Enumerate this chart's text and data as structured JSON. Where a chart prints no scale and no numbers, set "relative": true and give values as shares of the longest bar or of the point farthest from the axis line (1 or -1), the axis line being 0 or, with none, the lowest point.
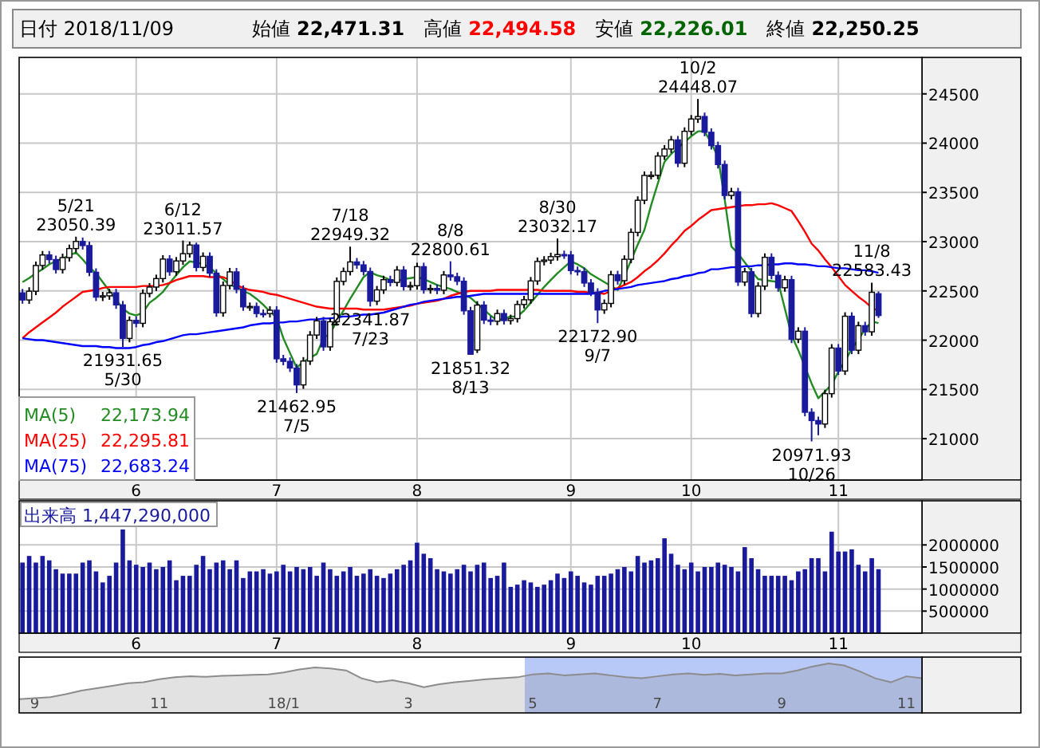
{
  "chart_data": [
    {
      "type": "candlestick",
      "categories": [
        null,
        null,
        null,
        null,
        null,
        null,
        null,
        null,
        null,
        null,
        null,
        null,
        null,
        null,
        null,
        null,
        null,
        "6",
        null,
        null,
        null,
        null,
        null,
        null,
        null,
        null,
        null,
        null,
        null,
        null,
        null,
        null,
        null,
        null,
        null,
        null,
        null,
        null,
        "7",
        null,
        null,
        null,
        null,
        null,
        null,
        null,
        null,
        null,
        null,
        null,
        null,
        null,
        null,
        null,
        null,
        null,
        null,
        null,
        null,
        "8",
        null,
        null,
        null,
        null,
        null,
        null,
        null,
        null,
        null,
        null,
        null,
        null,
        null,
        null,
        null,
        null,
        null,
        null,
        null,
        null,
        null,
        null,
        "9",
        null,
        null,
        null,
        null,
        null,
        null,
        null,
        null,
        null,
        null,
        null,
        null,
        null,
        null,
        null,
        null,
        null,
        "10",
        null,
        null,
        null,
        null,
        null,
        null,
        null,
        null,
        null,
        null,
        null,
        null,
        null,
        null,
        null,
        null,
        null,
        null,
        null,
        null,
        null,
        "11",
        null,
        null,
        null,
        null,
        null,
        null
      ],
      "ohlc": [
        [
          22480,
          22520,
          22370,
          22408
        ],
        [
          22408,
          22537,
          22368,
          22497
        ],
        [
          22497,
          22798,
          22457,
          22758
        ],
        [
          22758,
          22905,
          22718,
          22865
        ],
        [
          22865,
          22905,
          22778,
          22818
        ],
        [
          22818,
          22858,
          22677,
          22717
        ],
        [
          22717,
          22878,
          22677,
          22838
        ],
        [
          22838,
          22970,
          22798,
          22930
        ],
        [
          22930,
          23050.39,
          22890,
          23002
        ],
        [
          23002,
          23042,
          22920,
          22960
        ],
        [
          22960,
          23000,
          22649,
          22689
        ],
        [
          22689,
          22729,
          22397,
          22437
        ],
        [
          22437,
          22490,
          22397,
          22450
        ],
        [
          22450,
          22521,
          22410,
          22481
        ],
        [
          22481,
          22521,
          22318,
          22358
        ],
        [
          22358,
          22398,
          21931.65,
          22018
        ],
        [
          22018,
          22241,
          21978,
          22201
        ],
        [
          22201,
          22241,
          22131,
          22171
        ],
        [
          22171,
          22515,
          22131,
          22475
        ],
        [
          22475,
          22579,
          22435,
          22539
        ],
        [
          22539,
          22665,
          22499,
          22625
        ],
        [
          22625,
          22863,
          22585,
          22823
        ],
        [
          22823,
          22863,
          22654,
          22694
        ],
        [
          22694,
          22844,
          22654,
          22804
        ],
        [
          22804,
          23011.57,
          22764,
          22878
        ],
        [
          22878,
          23000,
          22838,
          22966
        ],
        [
          22966,
          22990,
          22698,
          22738
        ],
        [
          22738,
          22891,
          22698,
          22851
        ],
        [
          22851,
          22891,
          22640,
          22680
        ],
        [
          22680,
          22720,
          22238,
          22278
        ],
        [
          22278,
          22595,
          22238,
          22555
        ],
        [
          22555,
          22733,
          22515,
          22693
        ],
        [
          22693,
          22733,
          22476,
          22516
        ],
        [
          22516,
          22556,
          22298,
          22338
        ],
        [
          22338,
          22382,
          22298,
          22342
        ],
        [
          22342,
          22382,
          22231,
          22271
        ],
        [
          22271,
          22311,
          22230,
          22270
        ],
        [
          22270,
          22344,
          22230,
          22304
        ],
        [
          22304,
          22344,
          21771,
          21811
        ],
        [
          21811,
          21851,
          21745,
          21785
        ],
        [
          21785,
          21825,
          21677,
          21717
        ],
        [
          21717,
          21757,
          21462.95,
          21546
        ],
        [
          21546,
          21828,
          21506,
          21788
        ],
        [
          21788,
          22092,
          21748,
          22052
        ],
        [
          22052,
          22236,
          22012,
          22196
        ],
        [
          22196,
          22236,
          21892,
          21932
        ],
        [
          21932,
          22227,
          21892,
          22187
        ],
        [
          22187,
          22637,
          22147,
          22597
        ],
        [
          22597,
          22737,
          22557,
          22697
        ],
        [
          22697,
          22949.32,
          22657,
          22794
        ],
        [
          22794,
          22834,
          22724,
          22764
        ],
        [
          22764,
          22804,
          22657,
          22697
        ],
        [
          22697,
          22737,
          22341.87,
          22396
        ],
        [
          22396,
          22550,
          22356,
          22510
        ],
        [
          22510,
          22654,
          22470,
          22614
        ],
        [
          22614,
          22654,
          22546,
          22586
        ],
        [
          22586,
          22752,
          22546,
          22712
        ],
        [
          22712,
          22752,
          22504,
          22544
        ],
        [
          22544,
          22593,
          22504,
          22553
        ],
        [
          22553,
          22786,
          22513,
          22746
        ],
        [
          22746,
          22786,
          22472,
          22512
        ],
        [
          22512,
          22565,
          22472,
          22525
        ],
        [
          22525,
          22565,
          22467,
          22507
        ],
        [
          22507,
          22702,
          22467,
          22662
        ],
        [
          22662,
          22800.61,
          22604,
          22644
        ],
        [
          22644,
          22684,
          22558,
          22598
        ],
        [
          22598,
          22638,
          22258,
          22298
        ],
        [
          22298,
          22338,
          21851.32,
          21857
        ],
        [
          21900,
          22396,
          21870,
          22356
        ],
        [
          22356,
          22396,
          22164,
          22204
        ],
        [
          22204,
          22244,
          22152,
          22192
        ],
        [
          22192,
          22310,
          22152,
          22270
        ],
        [
          22270,
          22310,
          22159,
          22199
        ],
        [
          22199,
          22259,
          22159,
          22219
        ],
        [
          22219,
          22402,
          22179,
          22362
        ],
        [
          22362,
          22450,
          22322,
          22410
        ],
        [
          22410,
          22641,
          22370,
          22601
        ],
        [
          22601,
          22839,
          22561,
          22799
        ],
        [
          22799,
          22853,
          22759,
          22813
        ],
        [
          22813,
          22888,
          22773,
          22848
        ],
        [
          22848,
          23032.17,
          22808,
          22869
        ],
        [
          22869,
          22909,
          22825,
          22865
        ],
        [
          22865,
          22905,
          22667,
          22707
        ],
        [
          22707,
          22747,
          22656,
          22696
        ],
        [
          22696,
          22736,
          22540,
          22580
        ],
        [
          22580,
          22620,
          22447,
          22487
        ],
        [
          22487,
          22527,
          22172.9,
          22307
        ],
        [
          22307,
          22413,
          22267,
          22373
        ],
        [
          22373,
          22704,
          22333,
          22664
        ],
        [
          22664,
          22704,
          22564,
          22604
        ],
        [
          22604,
          22861,
          22564,
          22821
        ],
        [
          22821,
          23134,
          22781,
          23094
        ],
        [
          23094,
          23460,
          23054,
          23420
        ],
        [
          23420,
          23712,
          23380,
          23672
        ],
        [
          23672,
          23714,
          23632,
          23674
        ],
        [
          23674,
          23909,
          23634,
          23869
        ],
        [
          23869,
          23980,
          23829,
          23940
        ],
        [
          23940,
          24073,
          23900,
          24033
        ],
        [
          24033,
          24073,
          23756,
          23796
        ],
        [
          23796,
          24160,
          23756,
          24120
        ],
        [
          24120,
          24285,
          24080,
          24245
        ],
        [
          24245,
          24448.07,
          24205,
          24270
        ],
        [
          24270,
          24310,
          24070,
          24110
        ],
        [
          24110,
          24150,
          23935,
          23975
        ],
        [
          23975,
          24015,
          23743,
          23783
        ],
        [
          23783,
          23823,
          23429,
          23469
        ],
        [
          23469,
          23546,
          23429,
          23506
        ],
        [
          23506,
          23546,
          22550,
          22590
        ],
        [
          22590,
          22734,
          22550,
          22694
        ],
        [
          22694,
          22734,
          22231,
          22271
        ],
        [
          22271,
          22589,
          22231,
          22549
        ],
        [
          22549,
          22881,
          22509,
          22841
        ],
        [
          22841,
          22881,
          22618,
          22658
        ],
        [
          22658,
          22698,
          22492,
          22532
        ],
        [
          22532,
          22654,
          22492,
          22614
        ],
        [
          22614,
          22654,
          21970,
          22010
        ],
        [
          22010,
          22131,
          21970,
          22091
        ],
        [
          22091,
          22131,
          21228,
          21268
        ],
        [
          21268,
          21308,
          20971.93,
          21184
        ],
        [
          21184,
          21224,
          21035,
          21149
        ],
        [
          21149,
          21497,
          21109,
          21457
        ],
        [
          21457,
          21960,
          21417,
          21920
        ],
        [
          21920,
          21960,
          21647,
          21687
        ],
        [
          21687,
          22283,
          21647,
          22243
        ],
        [
          22243,
          22283,
          21858,
          21898
        ],
        [
          21898,
          22187,
          21858,
          22147
        ],
        [
          22147,
          22187,
          22045,
          22085
        ],
        [
          22085,
          22583.43,
          22045,
          22486
        ],
        [
          22471.31,
          22494.58,
          22226.01,
          22250.25
        ]
      ],
      "ylim": [
        20580,
        24870
      ],
      "yticks": [
        21000,
        21500,
        22000,
        22500,
        23000,
        23500,
        24000,
        24500
      ],
      "grid": true,
      "legend": "bottom left",
      "series": [
        {
          "type": "line",
          "name": "MA(5) 22,173.94",
          "color": "#228b22",
          "values": [
            22590,
            22630,
            22680,
            22720,
            22770,
            22800,
            22830,
            22860,
            22890,
            22820,
            22740,
            22680,
            22590,
            22500,
            22410,
            22320,
            22270,
            22250,
            22280,
            22380,
            22430,
            22490,
            22580,
            22660,
            22740,
            22800,
            22790,
            22770,
            22740,
            22680,
            22620,
            22560,
            22540,
            22500,
            22470,
            22420,
            22360,
            22290,
            22230,
            22020,
            21870,
            21720,
            21780,
            21820,
            21860,
            22020,
            22070,
            22190,
            22300,
            22420,
            22530,
            22640,
            22690,
            22660,
            22640,
            22610,
            22600,
            22620,
            22630,
            22640,
            22620,
            22590,
            22560,
            22540,
            22520,
            22490,
            22460,
            22430,
            22370,
            22310,
            22250,
            22200,
            22220,
            22240,
            22240,
            22300,
            22380,
            22460,
            22540,
            22610,
            22680,
            22740,
            22800,
            22770,
            22730,
            22670,
            22630,
            22590,
            22550,
            22510,
            22650,
            22810,
            22970,
            23120,
            23370,
            23590,
            23810,
            23890,
            23950,
            24010,
            24070,
            24120,
            24120,
            24000,
            23860,
            23430,
            22950,
            22880,
            22790,
            22700,
            22620,
            22610,
            22600,
            22590,
            22320,
            22050,
            21900,
            21730,
            21560,
            21410,
            21480,
            21550,
            21680,
            21790,
            21910,
            22010,
            22110,
            22190,
            22173.94
          ]
        },
        {
          "type": "line",
          "name": "MA(25) 22,295.81",
          "color": "#ff0000",
          "values": [
            22020,
            22080,
            22130,
            22180,
            22230,
            22280,
            22340,
            22390,
            22440,
            22490,
            22500,
            22510,
            22530,
            22540,
            22540,
            22540,
            22540,
            22540,
            22550,
            22550,
            22550,
            22560,
            22580,
            22610,
            22630,
            22650,
            22650,
            22650,
            22640,
            22640,
            22640,
            22610,
            22560,
            22530,
            22510,
            22500,
            22490,
            22470,
            22460,
            22440,
            22420,
            22400,
            22380,
            22360,
            22340,
            22330,
            22320,
            22320,
            22320,
            22320,
            22320,
            22310,
            22310,
            22310,
            22310,
            22320,
            22330,
            22340,
            22350,
            22370,
            22380,
            22390,
            22400,
            22420,
            22450,
            22470,
            22490,
            22500,
            22500,
            22500,
            22500,
            22510,
            22510,
            22510,
            22510,
            22510,
            22510,
            22510,
            22500,
            22500,
            22500,
            22500,
            22500,
            22490,
            22490,
            22480,
            22480,
            22470,
            22500,
            22530,
            22560,
            22590,
            22640,
            22700,
            22750,
            22810,
            22880,
            22960,
            23030,
            23110,
            23160,
            23220,
            23270,
            23320,
            23330,
            23340,
            23350,
            23360,
            23370,
            23370,
            23380,
            23380,
            23390,
            23370,
            23340,
            23310,
            23210,
            23100,
            22980,
            22910,
            22820,
            22740,
            22650,
            22560,
            22500,
            22440,
            22390,
            22330,
            22295.81
          ]
        },
        {
          "type": "line",
          "name": "MA(75) 22,683.24",
          "color": "#0000ff",
          "values": [
            22020,
            22010,
            22000,
            22000,
            21990,
            21980,
            21970,
            21960,
            21950,
            21940,
            21940,
            21940,
            21930,
            21930,
            21920,
            21920,
            21920,
            21930,
            21950,
            21960,
            21980,
            21990,
            22010,
            22030,
            22050,
            22060,
            22060,
            22070,
            22080,
            22090,
            22100,
            22110,
            22120,
            22130,
            22150,
            22160,
            22170,
            22170,
            22180,
            22180,
            22190,
            22190,
            22200,
            22210,
            22210,
            22220,
            22220,
            22230,
            22240,
            22240,
            22250,
            22260,
            22260,
            22270,
            22280,
            22300,
            22320,
            22340,
            22360,
            22370,
            22390,
            22400,
            22410,
            22420,
            22430,
            22440,
            22440,
            22450,
            22460,
            22470,
            22470,
            22470,
            22470,
            22470,
            22470,
            22470,
            22470,
            22470,
            22470,
            22470,
            22470,
            22470,
            22470,
            22470,
            22470,
            22470,
            22480,
            22500,
            22510,
            22520,
            22530,
            22540,
            22560,
            22570,
            22580,
            22590,
            22600,
            22620,
            22630,
            22650,
            22660,
            22680,
            22690,
            22720,
            22720,
            22730,
            22740,
            22740,
            22750,
            22750,
            22760,
            22760,
            22770,
            22770,
            22780,
            22780,
            22770,
            22770,
            22760,
            22750,
            22750,
            22740,
            22730,
            22730,
            22720,
            22710,
            22710,
            22700,
            22683.24
          ]
        }
      ],
      "annotations": [
        "日付 2018/11/09",
        "始値",
        "22,471.31",
        "高値",
        "22,494.58",
        "安値",
        "22,226.01",
        "終値",
        "22,250.25",
        {
          "text": "5/21\n23050.39",
          "y": 23050.39
        },
        {
          "text": "21931.65\n5/30",
          "y": 21931.65
        },
        {
          "text": "6/12\n23011.57",
          "y": 23011.57
        },
        {
          "text": "21462.95\n7/5",
          "y": 21462.95
        },
        {
          "text": "7/18\n22949.32",
          "y": 22949.32
        },
        {
          "text": "22341.87\n7/23",
          "y": 22341.87
        },
        {
          "text": "8/8\n22800.61",
          "y": 22800.61
        },
        {
          "text": "21851.32\n8/13",
          "y": 21851.32
        },
        {
          "text": "8/30\n23032.17",
          "y": 23032.17
        },
        {
          "text": "22172.90\n9/7",
          "y": 22172.9
        },
        {
          "text": "10/2\n24448.07",
          "y": 24448.07
        },
        {
          "text": "20971.93\n10/26",
          "y": 20971.93
        },
        {
          "text": "11/8\n22583.43",
          "y": 22583.43
        }
      ]
    },
    {
      "type": "bar",
      "title": "出来高 1,447,290,000",
      "color": "#1a1a9c",
      "categories": [
        null,
        null,
        null,
        null,
        null,
        null,
        null,
        null,
        null,
        null,
        null,
        null,
        null,
        null,
        null,
        null,
        null,
        "6",
        null,
        null,
        null,
        null,
        null,
        null,
        null,
        null,
        null,
        null,
        null,
        null,
        null,
        null,
        null,
        null,
        null,
        null,
        null,
        null,
        "7",
        null,
        null,
        null,
        null,
        null,
        null,
        null,
        null,
        null,
        null,
        null,
        null,
        null,
        null,
        null,
        null,
        null,
        null,
        null,
        null,
        "8",
        null,
        null,
        null,
        null,
        null,
        null,
        null,
        null,
        null,
        null,
        null,
        null,
        null,
        null,
        null,
        null,
        null,
        null,
        null,
        null,
        null,
        null,
        "9",
        null,
        null,
        null,
        null,
        null,
        null,
        null,
        null,
        null,
        null,
        null,
        null,
        null,
        null,
        null,
        null,
        null,
        "10",
        null,
        null,
        null,
        null,
        null,
        null,
        null,
        null,
        null,
        null,
        null,
        null,
        null,
        null,
        null,
        null,
        null,
        null,
        null,
        null,
        null,
        "11",
        null,
        null,
        null,
        null,
        null,
        null
      ],
      "values": [
        1600000,
        1750000,
        1600000,
        1750000,
        1650000,
        1450000,
        1350000,
        1350000,
        1350000,
        1600000,
        1650000,
        1400000,
        1150000,
        1300000,
        1600000,
        2350000,
        1650000,
        1550000,
        1500000,
        1600000,
        1450000,
        1500000,
        1650000,
        1200000,
        1300000,
        1300000,
        1550000,
        1750000,
        1450000,
        1600000,
        1650000,
        1450000,
        1650000,
        1250000,
        1400000,
        1400000,
        1450000,
        1350000,
        1400000,
        1550000,
        1400000,
        1500000,
        1450000,
        1500000,
        1300000,
        1600000,
        1450000,
        1300000,
        1400000,
        1500000,
        1300000,
        1350000,
        1450000,
        1300000,
        1250000,
        1350000,
        1450000,
        1550000,
        1650000,
        2050000,
        1800000,
        1700000,
        1450000,
        1400000,
        1350000,
        1450000,
        1550000,
        1400000,
        1550000,
        1600000,
        1250000,
        1300000,
        1600000,
        1050000,
        1100000,
        1200000,
        1150000,
        1050000,
        1100000,
        1200000,
        1350000,
        1250000,
        1400000,
        1300000,
        1150000,
        1100000,
        1300000,
        1300000,
        1350000,
        1450000,
        1500000,
        1400000,
        1750000,
        1600000,
        1650000,
        1700000,
        2150000,
        1800000,
        1550000,
        1450000,
        1600000,
        1400000,
        1500000,
        1500000,
        1600000,
        1550000,
        1500000,
        1400000,
        1950000,
        1700000,
        1450000,
        1300000,
        1300000,
        1300000,
        1300000,
        1200000,
        1400000,
        1450000,
        1700000,
        1700000,
        1400000,
        2300000,
        1850000,
        1850000,
        1900000,
        1550000,
        1400000,
        1700000,
        1450000
      ],
      "ylim": [
        0,
        3000000
      ],
      "yticks": [
        500000,
        1000000,
        1500000,
        2000000
      ],
      "grid": true
    },
    {
      "type": "area",
      "relative": true,
      "color": "#8c8c8c",
      "categories": [
        null,
        "9",
        null,
        null,
        null,
        null,
        null,
        null,
        null,
        "11",
        null,
        null,
        null,
        null,
        null,
        null,
        null,
        "18/1",
        null,
        null,
        null,
        null,
        null,
        null,
        null,
        "3",
        null,
        null,
        null,
        null,
        null,
        null,
        null,
        "5",
        null,
        null,
        null,
        null,
        null,
        null,
        null,
        "7",
        null,
        null,
        null,
        null,
        null,
        null,
        null,
        "9",
        null,
        null,
        null,
        null,
        null,
        null,
        null,
        "11",
        null
      ],
      "values": [
        0.28,
        0.3,
        0.32,
        0.38,
        0.45,
        0.5,
        0.55,
        0.6,
        0.62,
        0.68,
        0.72,
        0.74,
        0.73,
        0.75,
        0.76,
        0.77,
        0.78,
        0.82,
        0.88,
        0.92,
        0.9,
        0.86,
        0.7,
        0.62,
        0.66,
        0.6,
        0.52,
        0.58,
        0.62,
        0.65,
        0.68,
        0.7,
        0.72,
        0.78,
        0.8,
        0.76,
        0.78,
        0.8,
        0.76,
        0.72,
        0.7,
        0.74,
        0.78,
        0.8,
        0.77,
        0.79,
        0.76,
        0.78,
        0.8,
        0.8,
        0.86,
        0.94,
        1.0,
        0.96,
        0.84,
        0.7,
        0.62,
        0.74,
        0.7
      ]
    }
  ]
}
